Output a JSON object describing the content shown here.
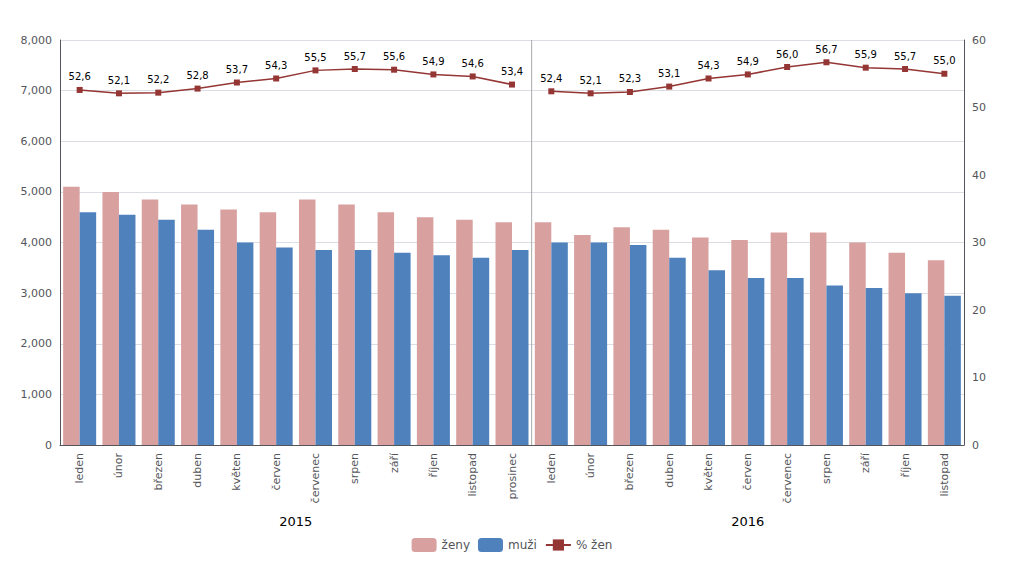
{
  "chart_data": {
    "type": "bar",
    "categories": [
      "leden",
      "únor",
      "březen",
      "duben",
      "květen",
      "červen",
      "červenec",
      "srpen",
      "září",
      "říjen",
      "listopad",
      "prosinec",
      "leden",
      "únor",
      "březen",
      "duben",
      "květen",
      "červen",
      "červenec",
      "srpen",
      "září",
      "říjen",
      "listopad"
    ],
    "series": [
      {
        "name": "ženy",
        "type": "bar",
        "color": "#d9a0a0",
        "values": [
          5100,
          5000,
          4850,
          4750,
          4650,
          4600,
          4850,
          4750,
          4600,
          4500,
          4450,
          4400,
          4400,
          4150,
          4300,
          4250,
          4100,
          4050,
          4200,
          4200,
          4000,
          3800,
          3650
        ]
      },
      {
        "name": "muži",
        "type": "bar",
        "color": "#4f81bd",
        "values": [
          4600,
          4550,
          4450,
          4250,
          4000,
          3900,
          3850,
          3850,
          3800,
          3750,
          3700,
          3850,
          4000,
          4000,
          3950,
          3700,
          3450,
          3300,
          3300,
          3150,
          3100,
          3000,
          2950
        ]
      },
      {
        "name": "% žen",
        "type": "line",
        "axis": "y2",
        "color": "#943634",
        "marker": "square",
        "values": [
          52.6,
          52.1,
          52.2,
          52.8,
          53.7,
          54.3,
          55.5,
          55.7,
          55.6,
          54.9,
          54.6,
          53.4,
          null,
          null,
          null,
          null,
          null,
          null,
          null,
          null,
          null,
          null,
          null
        ],
        "value_labels": [
          "52,6",
          "52,1",
          "52,2",
          "52,8",
          "53,7",
          "54,3",
          "55,5",
          "55,7",
          "55,6",
          "54,9",
          "54,6",
          "53,4",
          null,
          null,
          null,
          null,
          null,
          null,
          null,
          null,
          null,
          null,
          null
        ]
      },
      {
        "name": "% žen",
        "type": "line",
        "axis": "y2",
        "color": "#943634",
        "marker": "square",
        "values": [
          null,
          null,
          null,
          null,
          null,
          null,
          null,
          null,
          null,
          null,
          null,
          null,
          52.4,
          52.1,
          52.3,
          53.1,
          54.3,
          54.9,
          56.0,
          56.7,
          55.9,
          55.7,
          55.0
        ],
        "value_labels": [
          null,
          null,
          null,
          null,
          null,
          null,
          null,
          null,
          null,
          null,
          null,
          null,
          "52,4",
          "52,1",
          "52,3",
          "53,1",
          "54,3",
          "54,9",
          "56,0",
          "56,7",
          "55,9",
          "55,7",
          "55,0"
        ]
      }
    ],
    "ylim": [
      0,
      8000
    ],
    "yticks": [
      0,
      1000,
      2000,
      3000,
      4000,
      5000,
      6000,
      7000,
      8000
    ],
    "y2lim": [
      0,
      60
    ],
    "y2ticks": [
      0,
      10,
      20,
      30,
      40,
      50,
      60
    ],
    "grid": true,
    "legend": "bottom",
    "data_labels": true,
    "annotations": [
      {
        "text": "2015",
        "from": 0,
        "to": 11
      },
      {
        "text": "2016",
        "from": 12,
        "to": 22
      }
    ]
  }
}
